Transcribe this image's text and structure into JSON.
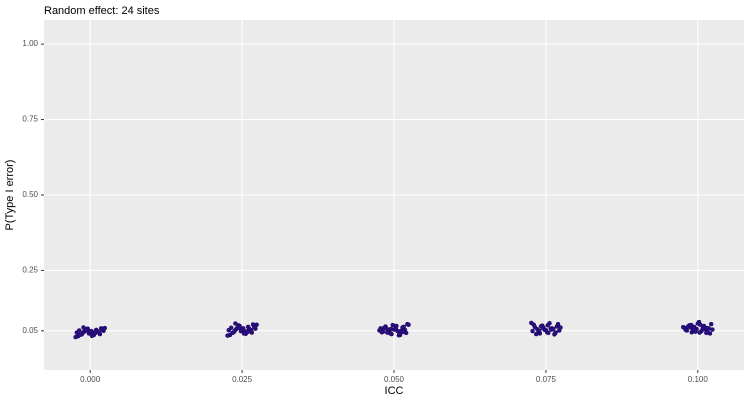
{
  "chart_data": {
    "type": "scatter",
    "title": "Random effect: 24 sites",
    "x_label": "ICC",
    "y_label": "P(Type I error)",
    "color": "#2b0f86",
    "grid": true,
    "xlim": [
      -0.0076,
      0.1076
    ],
    "ylim": [
      -0.08,
      1.08
    ],
    "xticks": [
      {
        "value": 0,
        "label": "0.000"
      },
      0.025,
      {
        "value": 0.05,
        "label": "0.050"
      },
      0.075,
      {
        "value": 0.1,
        "label": "0.100"
      }
    ],
    "yticks": [
      0.05,
      0.25,
      {
        "value": 0.5,
        "label": "0.50"
      },
      0.75,
      {
        "value": 1,
        "label": "1.00"
      }
    ],
    "x": [
      -0.0022,
      -0.0018,
      -0.0014,
      -0.001,
      -0.0006,
      -0.0002,
      0.0002,
      0.0006,
      0.001,
      0.0014,
      0.0018,
      0.0022,
      -0.002,
      -0.0012,
      -0.0004,
      0.0004,
      0.0012,
      0.002,
      -0.0016,
      -0.0008,
      0,
      0.0008,
      0.0016,
      -0.0024,
      0.0024,
      -0.0011,
      0.0003,
      0.0015,
      -0.0005,
      0.0009,
      0.0228,
      0.0232,
      0.0236,
      0.024,
      0.0244,
      0.0248,
      0.0252,
      0.0256,
      0.026,
      0.0264,
      0.0268,
      0.0272,
      0.023,
      0.0238,
      0.0246,
      0.0254,
      0.0262,
      0.027,
      0.0234,
      0.0242,
      0.025,
      0.0258,
      0.0266,
      0.0226,
      0.0274,
      0.0239,
      0.0253,
      0.0265,
      0.0245,
      0.0259,
      0.0478,
      0.0482,
      0.0486,
      0.049,
      0.0494,
      0.0498,
      0.0502,
      0.0506,
      0.051,
      0.0514,
      0.0518,
      0.0522,
      0.048,
      0.0488,
      0.0496,
      0.0504,
      0.0512,
      0.052,
      0.0484,
      0.0492,
      0.05,
      0.0508,
      0.0516,
      0.0476,
      0.0524,
      0.0489,
      0.0503,
      0.0515,
      0.0495,
      0.0509,
      0.0728,
      0.0732,
      0.0736,
      0.074,
      0.0744,
      0.0748,
      0.0752,
      0.0756,
      0.076,
      0.0764,
      0.0768,
      0.0772,
      0.073,
      0.0738,
      0.0746,
      0.0754,
      0.0762,
      0.077,
      0.0734,
      0.0742,
      0.075,
      0.0758,
      0.0766,
      0.0726,
      0.0774,
      0.0739,
      0.0753,
      0.0765,
      0.0745,
      0.0759,
      0.0978,
      0.0982,
      0.0986,
      0.099,
      0.0994,
      0.0998,
      0.1002,
      0.1006,
      0.101,
      0.1014,
      0.1018,
      0.1022,
      0.098,
      0.0988,
      0.0996,
      0.1004,
      0.1012,
      0.102,
      0.0984,
      0.0992,
      0.1,
      0.1008,
      0.1016,
      0.0976,
      0.1024,
      0.0989,
      0.1003,
      0.1015,
      0.0995,
      0.1009
    ],
    "values": [
      0.044,
      0.051,
      0.038,
      0.047,
      0.055,
      0.041,
      0.049,
      0.036,
      0.053,
      0.045,
      0.058,
      0.05,
      0.032,
      0.043,
      0.057,
      0.04,
      0.048,
      0.054,
      0.037,
      0.052,
      0.046,
      0.042,
      0.039,
      0.029,
      0.059,
      0.061,
      0.033,
      0.044,
      0.05,
      0.047,
      0.052,
      0.06,
      0.045,
      0.055,
      0.068,
      0.049,
      0.058,
      0.04,
      0.063,
      0.053,
      0.071,
      0.057,
      0.036,
      0.05,
      0.066,
      0.047,
      0.056,
      0.062,
      0.043,
      0.059,
      0.054,
      0.048,
      0.044,
      0.034,
      0.07,
      0.074,
      0.041,
      0.051,
      0.061,
      0.046,
      0.058,
      0.047,
      0.064,
      0.052,
      0.041,
      0.069,
      0.055,
      0.049,
      0.036,
      0.061,
      0.053,
      0.072,
      0.045,
      0.057,
      0.039,
      0.066,
      0.05,
      0.043,
      0.06,
      0.048,
      0.054,
      0.035,
      0.063,
      0.051,
      0.07,
      0.044,
      0.059,
      0.046,
      0.056,
      0.04,
      0.049,
      0.062,
      0.055,
      0.041,
      0.067,
      0.053,
      0.045,
      0.075,
      0.058,
      0.038,
      0.064,
      0.051,
      0.07,
      0.047,
      0.06,
      0.043,
      0.056,
      0.072,
      0.039,
      0.065,
      0.052,
      0.057,
      0.044,
      0.076,
      0.061,
      0.05,
      0.068,
      0.042,
      0.059,
      0.054,
      0.06,
      0.051,
      0.068,
      0.045,
      0.063,
      0.056,
      0.079,
      0.049,
      0.066,
      0.043,
      0.058,
      0.072,
      0.053,
      0.061,
      0.047,
      0.07,
      0.055,
      0.041,
      0.064,
      0.05,
      0.074,
      0.057,
      0.046,
      0.062,
      0.054,
      0.069,
      0.044,
      0.059,
      0.052,
      0.065
    ]
  }
}
